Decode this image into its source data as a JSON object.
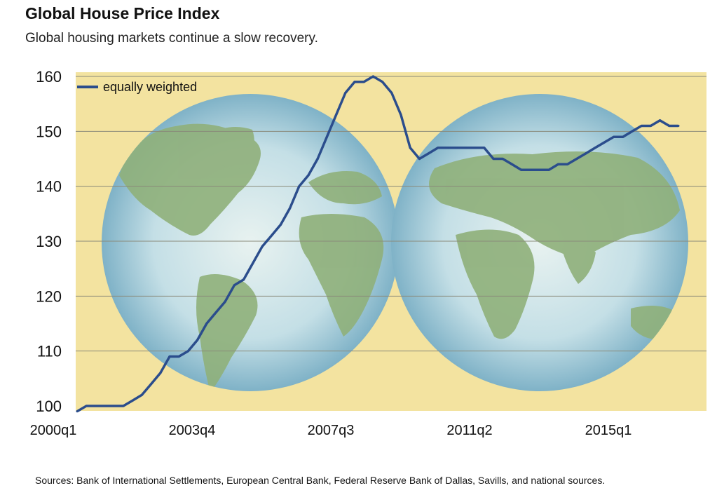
{
  "header": {
    "title": "Global House Price Index",
    "subtitle": "Global housing markets continue a slow recovery."
  },
  "footer": {
    "source": "Sources: Bank of International Settlements,  European Central Bank, Federal Reserve Bank of Dallas, Savills, and national sources."
  },
  "colors": {
    "background": "#f3e3a0",
    "line": "#2b4d8c",
    "globe_ocean": "#bfdde8",
    "globe_land": "#8fb07a",
    "grid": "#8a8a7a"
  },
  "chart_data": {
    "type": "line",
    "title": "Global House Price Index",
    "subtitle": "Global housing markets continue a slow recovery.",
    "xlabel": "",
    "ylabel": "",
    "ylim": [
      100,
      160
    ],
    "yticks": [
      "100",
      "110",
      "120",
      "130",
      "140",
      "150",
      "160"
    ],
    "xticks": [
      "2000q1",
      "2003q4",
      "2007q3",
      "2011q2",
      "2015q1"
    ],
    "grid": true,
    "legend": "top-left",
    "series": [
      {
        "name": "equally weighted",
        "x": [
          "2000q1",
          "2000q2",
          "2000q3",
          "2000q4",
          "2001q1",
          "2001q2",
          "2001q3",
          "2001q4",
          "2002q1",
          "2002q2",
          "2002q3",
          "2002q4",
          "2003q1",
          "2003q2",
          "2003q3",
          "2003q4",
          "2004q1",
          "2004q2",
          "2004q3",
          "2004q4",
          "2005q1",
          "2005q2",
          "2005q3",
          "2005q4",
          "2006q1",
          "2006q2",
          "2006q3",
          "2006q4",
          "2007q1",
          "2007q2",
          "2007q3",
          "2007q4",
          "2008q1",
          "2008q2",
          "2008q3",
          "2008q4",
          "2009q1",
          "2009q2",
          "2009q3",
          "2009q4",
          "2010q1",
          "2010q2",
          "2010q3",
          "2010q4",
          "2011q1",
          "2011q2",
          "2011q3",
          "2011q4",
          "2012q1",
          "2012q2",
          "2012q3",
          "2012q4",
          "2013q1",
          "2013q2",
          "2013q3",
          "2013q4",
          "2014q1",
          "2014q2",
          "2014q3",
          "2014q4",
          "2015q1",
          "2015q2",
          "2015q3",
          "2015q4",
          "2016q1",
          "2016q2"
        ],
        "values": [
          99,
          100,
          100,
          100,
          100,
          100,
          101,
          102,
          104,
          106,
          109,
          109,
          110,
          112,
          115,
          117,
          119,
          122,
          123,
          126,
          129,
          131,
          133,
          136,
          140,
          142,
          145,
          149,
          153,
          157,
          159,
          159,
          160,
          159,
          157,
          153,
          147,
          145,
          146,
          147,
          147,
          147,
          147,
          147,
          147,
          145,
          145,
          144,
          143,
          143,
          143,
          143,
          144,
          144,
          145,
          146,
          147,
          148,
          149,
          149,
          150,
          151,
          151,
          152,
          151,
          151
        ]
      }
    ]
  }
}
